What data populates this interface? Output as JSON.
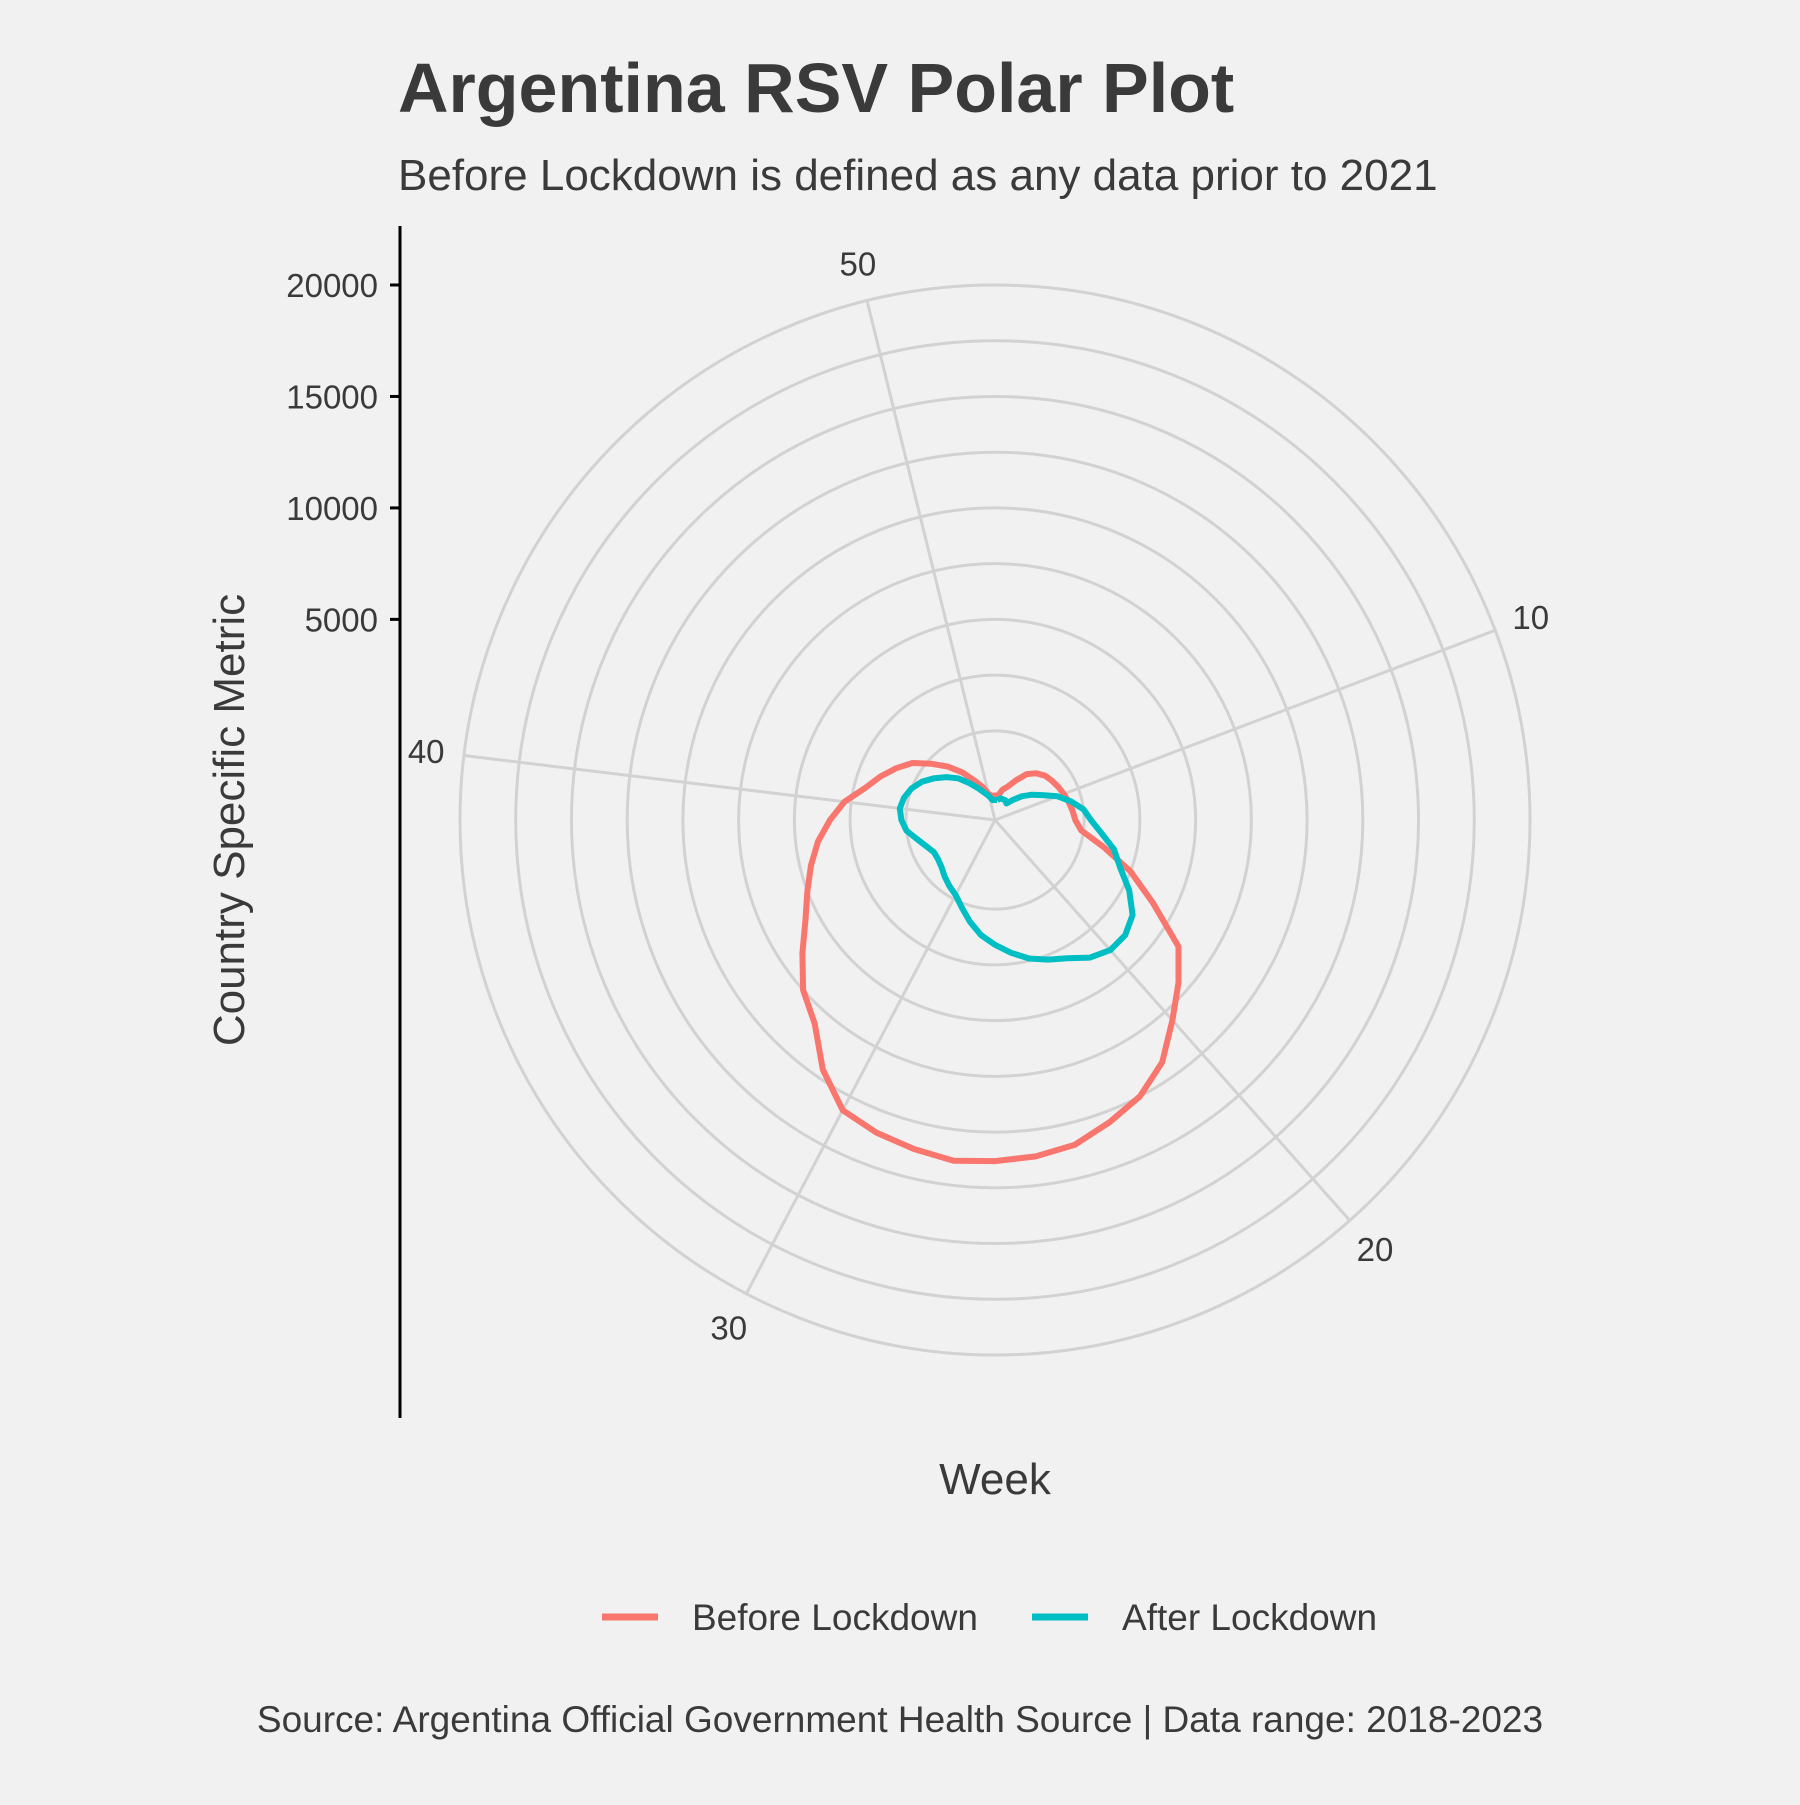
{
  "chart_data": {
    "type": "line",
    "coordinate_system": "polar",
    "title": "Argentina RSV Polar Plot",
    "subtitle": "Before Lockdown is defined as any data prior to 2021",
    "xlabel": "Week",
    "ylabel": "Country Specific Metric",
    "caption": "Source: Argentina Official Government Health Source | Data range: 2018-2023",
    "theta_ticks": [
      10,
      20,
      30,
      40,
      50
    ],
    "r_ticks": [
      5000,
      10000,
      15000,
      20000
    ],
    "xlim": [
      0,
      52
    ],
    "ylim": [
      -4000,
      20000
    ],
    "grid": true,
    "legend_position": "bottom",
    "legend": [
      "Before Lockdown",
      "After Lockdown"
    ],
    "series": [
      {
        "name": "Before Lockdown",
        "color": "#f8766d",
        "x": [
          1,
          2,
          3,
          4,
          5,
          6,
          7,
          8,
          9,
          10,
          11,
          12,
          13,
          14,
          15,
          16,
          17,
          18,
          19,
          20,
          21,
          22,
          23,
          24,
          25,
          26,
          27,
          28,
          29,
          30,
          31,
          32,
          33,
          34,
          35,
          36,
          37,
          38,
          39,
          40,
          41,
          42,
          43,
          44,
          45,
          46,
          47,
          48,
          49,
          50,
          51,
          52
        ],
        "y": [
          -2900,
          -2600,
          -2400,
          -2000,
          -1500,
          -1200,
          -1000,
          -900,
          -800,
          -700,
          -600,
          -500,
          -400,
          -100,
          1000,
          2500,
          4000,
          6000,
          7000,
          8000,
          9200,
          10000,
          10500,
          11000,
          11200,
          11300,
          11400,
          11200,
          11000,
          10700,
          9600,
          8200,
          7500,
          6500,
          5600,
          5000,
          4500,
          4000,
          3400,
          2800,
          2000,
          1500,
          1000,
          500,
          -200,
          -800,
          -1400,
          -2000,
          -2400,
          -2800,
          -2900,
          -2900
        ]
      },
      {
        "name": "After Lockdown",
        "color": "#00bfc4",
        "x": [
          1,
          2,
          3,
          4,
          5,
          6,
          7,
          8,
          9,
          10,
          11,
          12,
          13,
          14,
          15,
          16,
          17,
          18,
          19,
          20,
          21,
          22,
          23,
          24,
          25,
          26,
          27,
          28,
          29,
          30,
          31,
          32,
          33,
          34,
          35,
          36,
          37,
          38,
          39,
          40,
          41,
          42,
          43,
          44,
          45,
          46,
          47,
          48,
          49,
          50,
          51,
          52
        ],
        "y": [
          -3100,
          -3000,
          -3000,
          -3000,
          -3100,
          -2800,
          -2400,
          -2000,
          -1600,
          -1000,
          -500,
          0,
          300,
          800,
          1500,
          2000,
          2800,
          3500,
          3800,
          3800,
          3500,
          3000,
          2700,
          2400,
          2000,
          1600,
          1200,
          700,
          200,
          -200,
          -400,
          -600,
          -800,
          -900,
          -900,
          -700,
          -400,
          0,
          200,
          300,
          200,
          0,
          -300,
          -700,
          -1100,
          -1500,
          -2000,
          -2400,
          -2700,
          -2900,
          -3100,
          -3100
        ]
      }
    ]
  }
}
